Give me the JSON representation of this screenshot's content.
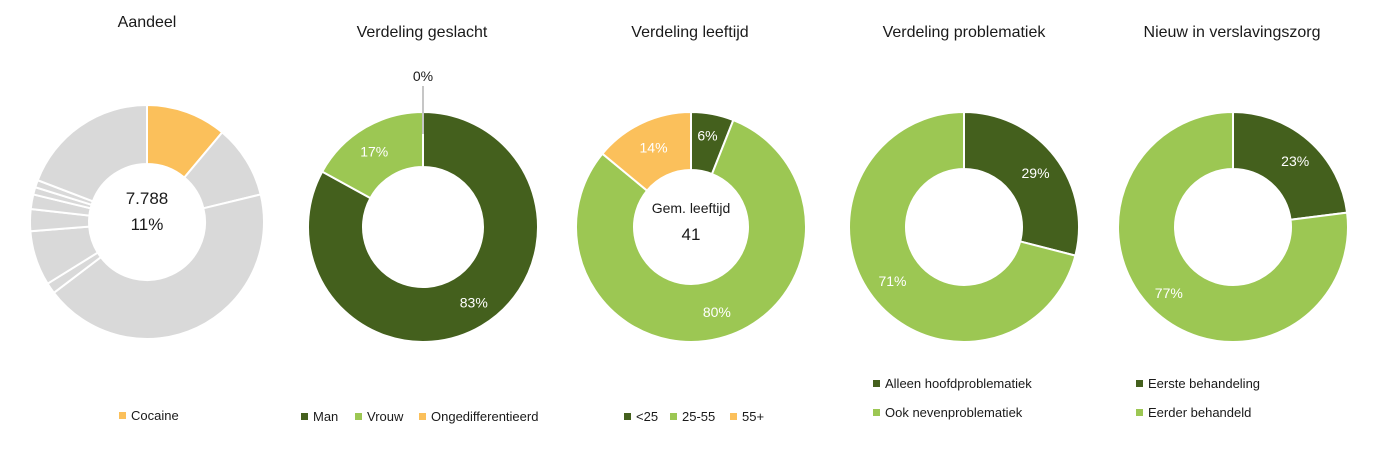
{
  "colors": {
    "dark_green": "#44601d",
    "light_green": "#9cc753",
    "orange": "#fbc05b",
    "grey": "#d9d9d9",
    "white": "#ffffff",
    "label_dark": "#1a1a1a",
    "label_light": "#ffffff"
  },
  "chart_data": [
    {
      "type": "pie",
      "variant": "donut",
      "title": "Aandeel",
      "center_text": [
        "7.788",
        "11%"
      ],
      "slices": [
        {
          "name": "Cocaine",
          "value": 11,
          "color": "#fbc05b",
          "show_label": false,
          "legend": true
        },
        {
          "name": "",
          "value": 10,
          "color": "#d9d9d9",
          "show_label": false,
          "legend": false
        },
        {
          "name": "",
          "value": 43,
          "color": "#d9d9d9",
          "show_label": false,
          "legend": false
        },
        {
          "name": "",
          "value": 1.5,
          "color": "#d9d9d9",
          "show_label": false,
          "legend": false
        },
        {
          "name": "",
          "value": 7.5,
          "color": "#d9d9d9",
          "show_label": false,
          "legend": false
        },
        {
          "name": "",
          "value": 3,
          "color": "#d9d9d9",
          "show_label": false,
          "legend": false
        },
        {
          "name": "",
          "value": 2,
          "color": "#d9d9d9",
          "show_label": false,
          "legend": false
        },
        {
          "name": "",
          "value": 1,
          "color": "#d9d9d9",
          "show_label": false,
          "legend": false
        },
        {
          "name": "",
          "value": 1,
          "color": "#d9d9d9",
          "show_label": false,
          "legend": false
        },
        {
          "name": "",
          "value": 19,
          "color": "#d9d9d9",
          "show_label": false,
          "legend": false
        }
      ],
      "legend_position": "bottom"
    },
    {
      "type": "pie",
      "variant": "donut",
      "title": "Verdeling geslacht",
      "center_text": [],
      "slices": [
        {
          "name": "Man",
          "value": 83,
          "label": "83%",
          "color": "#44601d",
          "show_label": true,
          "legend": true
        },
        {
          "name": "Vrouw",
          "value": 17,
          "label": "17%",
          "color": "#9cc753",
          "show_label": true,
          "legend": true
        },
        {
          "name": "Ongedifferentieerd",
          "value": 0,
          "label": "0%",
          "color": "#fbc05b",
          "show_label": true,
          "legend": true,
          "callout": true
        }
      ],
      "legend_position": "bottom"
    },
    {
      "type": "pie",
      "variant": "donut",
      "title": "Verdeling leeftijd",
      "center_text": [
        "Gem. leeftijd",
        "41"
      ],
      "slices": [
        {
          "name": "<25",
          "value": 6,
          "label": "6%",
          "color": "#44601d",
          "show_label": true,
          "legend": true
        },
        {
          "name": "25-55",
          "value": 80,
          "label": "80%",
          "color": "#9cc753",
          "show_label": true,
          "legend": true
        },
        {
          "name": "55+",
          "value": 14,
          "label": "14%",
          "color": "#fbc05b",
          "show_label": true,
          "legend": true
        }
      ],
      "legend_position": "bottom"
    },
    {
      "type": "pie",
      "variant": "donut",
      "title": "Verdeling problematiek",
      "center_text": [],
      "slices": [
        {
          "name": "Alleen hoofdproblematiek",
          "value": 29,
          "label": "29%",
          "color": "#44601d",
          "show_label": true,
          "legend": true
        },
        {
          "name": "Ook nevenproblematiek",
          "value": 71,
          "label": "71%",
          "color": "#9cc753",
          "show_label": true,
          "legend": true
        }
      ],
      "legend_position": "bottom"
    },
    {
      "type": "pie",
      "variant": "donut",
      "title": "Nieuw in verslavingszorg",
      "center_text": [],
      "slices": [
        {
          "name": "Eerste behandeling",
          "value": 23,
          "label": "23%",
          "color": "#44601d",
          "show_label": true,
          "legend": true
        },
        {
          "name": "Eerder behandeld",
          "value": 77,
          "label": "77%",
          "color": "#9cc753",
          "show_label": true,
          "legend": true
        }
      ],
      "legend_position": "bottom"
    }
  ]
}
